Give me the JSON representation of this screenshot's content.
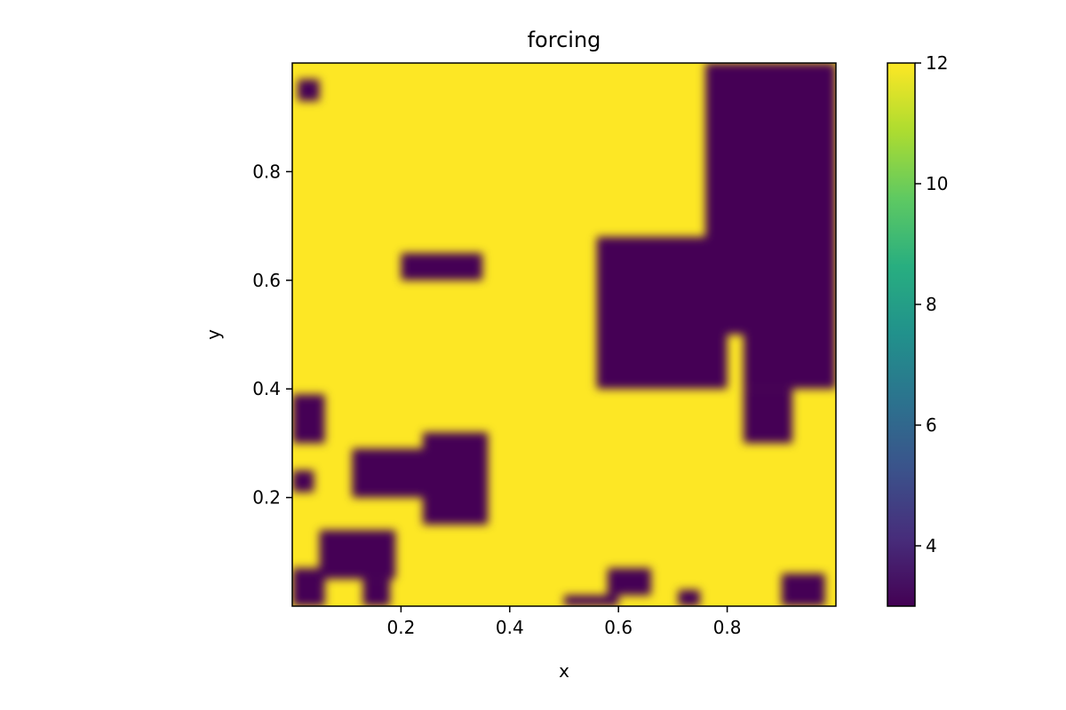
{
  "chart_data": {
    "type": "heatmap",
    "title": "forcing",
    "xlabel": "x",
    "ylabel": "y",
    "xlim": [
      0,
      1
    ],
    "ylim": [
      0,
      1
    ],
    "x_ticks": [
      0.2,
      0.4,
      0.6,
      0.8
    ],
    "x_tick_labels": [
      "0.2",
      "0.4",
      "0.6",
      "0.8"
    ],
    "y_ticks": [
      0.2,
      0.4,
      0.6,
      0.8
    ],
    "y_tick_labels": [
      "0.2",
      "0.4",
      "0.6",
      "0.8"
    ],
    "colormap": "viridis",
    "colorbar": {
      "range": [
        3,
        12
      ],
      "ticks": [
        4,
        6,
        8,
        10,
        12
      ],
      "tick_labels": [
        "4",
        "6",
        "8",
        "10",
        "12"
      ],
      "placement": "right"
    },
    "grid": false,
    "grid_size": 20,
    "values_low": 3,
    "values_high": 12,
    "rows_top_to_bottom": [
      "11111111111111110000",
      "11111111111111100000",
      "11111111111111110000",
      "11111111111111100000",
      "11111111111111110000",
      "11111111111110000000",
      "11111111111110000000",
      "11111111111000001100",
      "11111111111000000000",
      "11111111111111000000",
      "11111111111000000001",
      "11111111111111111100",
      "11111111111111111100",
      "11111111111111111100",
      "11111111111111111100",
      "11111111111111111100",
      "11111111111111111111",
      "11111111111111111111",
      "11111111111111111111",
      "11111111111111111111"
    ],
    "patches_low": [
      {
        "x": [
          0.01,
          0.05
        ],
        "y": [
          0.93,
          0.97
        ]
      },
      {
        "x": [
          0.2,
          0.35
        ],
        "y": [
          0.6,
          0.65
        ]
      },
      {
        "x": [
          0.56,
          0.8
        ],
        "y": [
          0.4,
          0.68
        ]
      },
      {
        "x": [
          0.76,
          1.0
        ],
        "y": [
          0.5,
          1.0
        ]
      },
      {
        "x": [
          0.83,
          1.0
        ],
        "y": [
          0.4,
          0.5
        ]
      },
      {
        "x": [
          0.83,
          0.92
        ],
        "y": [
          0.3,
          0.4
        ]
      },
      {
        "x": [
          0.0,
          0.06
        ],
        "y": [
          0.3,
          0.39
        ]
      },
      {
        "x": [
          0.0,
          0.04
        ],
        "y": [
          0.21,
          0.25
        ]
      },
      {
        "x": [
          0.11,
          0.35
        ],
        "y": [
          0.2,
          0.29
        ]
      },
      {
        "x": [
          0.24,
          0.36
        ],
        "y": [
          0.15,
          0.32
        ]
      },
      {
        "x": [
          0.05,
          0.19
        ],
        "y": [
          0.05,
          0.14
        ]
      },
      {
        "x": [
          0.0,
          0.06
        ],
        "y": [
          0.0,
          0.07
        ]
      },
      {
        "x": [
          0.13,
          0.18
        ],
        "y": [
          0.0,
          0.05
        ]
      },
      {
        "x": [
          0.5,
          0.6
        ],
        "y": [
          0.0,
          0.02
        ]
      },
      {
        "x": [
          0.58,
          0.66
        ],
        "y": [
          0.02,
          0.07
        ]
      },
      {
        "x": [
          0.71,
          0.75
        ],
        "y": [
          0.0,
          0.03
        ]
      },
      {
        "x": [
          0.9,
          0.98
        ],
        "y": [
          0.0,
          0.06
        ]
      }
    ]
  }
}
